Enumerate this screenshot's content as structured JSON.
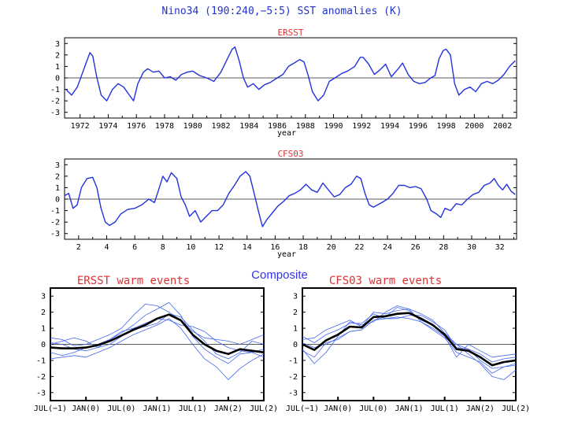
{
  "main_title": "Nino34 (190:240,−5:5) SST anomalies (K)",
  "composite_label": "Composite",
  "colors": {
    "title": "#2233cc",
    "subtitle": "#e03030",
    "series": "#2233dd",
    "composite": "#3333ee",
    "mean": "#000000",
    "thin": "#4466ee"
  },
  "chart_data": [
    {
      "id": "ersst",
      "type": "line",
      "title": "ERSST",
      "xlabel": "year",
      "ylabel": "",
      "xlim": [
        1970.9,
        2003.0
      ],
      "ylim": [
        -3.5,
        3.5
      ],
      "yticks": [
        -3,
        -2,
        -1,
        0,
        1,
        2,
        3
      ],
      "xtick_labels": [
        "1972",
        "1974",
        "1976",
        "1978",
        "1980",
        "1982",
        "1984",
        "1986",
        "1988",
        "1990",
        "1992",
        "1994",
        "1996",
        "1998",
        "2000",
        "2002"
      ],
      "x": [
        1971.0,
        1971.4,
        1971.8,
        1972.1,
        1972.4,
        1972.7,
        1972.9,
        1973.2,
        1973.5,
        1973.9,
        1974.3,
        1974.7,
        1975.1,
        1975.5,
        1975.8,
        1976.1,
        1976.5,
        1976.8,
        1977.2,
        1977.6,
        1978.0,
        1978.4,
        1978.8,
        1979.2,
        1979.6,
        1980.0,
        1980.5,
        1981.0,
        1981.5,
        1982.0,
        1982.4,
        1982.8,
        1983.0,
        1983.3,
        1983.6,
        1983.9,
        1984.3,
        1984.7,
        1985.1,
        1985.5,
        1986.0,
        1986.4,
        1986.8,
        1987.2,
        1987.6,
        1987.9,
        1988.2,
        1988.5,
        1988.9,
        1989.3,
        1989.7,
        1990.1,
        1990.6,
        1991.0,
        1991.5,
        1991.9,
        1992.1,
        1992.5,
        1992.9,
        1993.3,
        1993.7,
        1994.1,
        1994.6,
        1994.9,
        1995.3,
        1995.7,
        1996.1,
        1996.5,
        1996.9,
        1997.2,
        1997.5,
        1997.8,
        1998.0,
        1998.3,
        1998.6,
        1998.9,
        1999.3,
        1999.7,
        2000.1,
        2000.5,
        2000.9,
        2001.3,
        2001.7,
        2002.1,
        2002.5,
        2002.9
      ],
      "y": [
        -1.0,
        -1.5,
        -0.8,
        0.2,
        1.2,
        2.2,
        1.9,
        0.0,
        -1.5,
        -2.0,
        -1.0,
        -0.5,
        -0.8,
        -1.5,
        -2.0,
        -0.5,
        0.5,
        0.8,
        0.5,
        0.6,
        0.0,
        0.1,
        -0.2,
        0.3,
        0.5,
        0.6,
        0.2,
        0.0,
        -0.3,
        0.5,
        1.5,
        2.5,
        2.7,
        1.5,
        0.0,
        -0.8,
        -0.5,
        -1.0,
        -0.6,
        -0.4,
        0.0,
        0.3,
        1.0,
        1.3,
        1.6,
        1.4,
        0.2,
        -1.2,
        -2.0,
        -1.5,
        -0.3,
        0.0,
        0.4,
        0.6,
        1.0,
        1.8,
        1.8,
        1.2,
        0.3,
        0.7,
        1.2,
        0.1,
        0.8,
        1.3,
        0.3,
        -0.3,
        -0.5,
        -0.4,
        0.0,
        0.2,
        1.7,
        2.4,
        2.5,
        2.0,
        -0.5,
        -1.5,
        -1.0,
        -0.8,
        -1.2,
        -0.5,
        -0.3,
        -0.5,
        -0.2,
        0.3,
        1.0,
        1.5
      ]
    },
    {
      "id": "cfs03",
      "type": "line",
      "title": "CFS03",
      "xlabel": "year",
      "ylabel": "",
      "xlim": [
        1.0,
        33.2
      ],
      "ylim": [
        -3.5,
        3.5
      ],
      "yticks": [
        -3,
        -2,
        -1,
        0,
        1,
        2,
        3
      ],
      "xtick_labels": [
        "2",
        "4",
        "6",
        "8",
        "10",
        "12",
        "14",
        "16",
        "18",
        "20",
        "22",
        "24",
        "26",
        "28",
        "30",
        "32"
      ],
      "x": [
        1.0,
        1.3,
        1.6,
        1.9,
        2.2,
        2.6,
        3.0,
        3.3,
        3.6,
        3.9,
        4.2,
        4.6,
        5.0,
        5.5,
        6.0,
        6.5,
        7.0,
        7.4,
        7.7,
        8.0,
        8.3,
        8.6,
        9.0,
        9.3,
        9.6,
        9.9,
        10.3,
        10.7,
        11.1,
        11.5,
        11.9,
        12.3,
        12.7,
        13.1,
        13.5,
        13.9,
        14.2,
        14.5,
        14.8,
        15.1,
        15.4,
        15.8,
        16.2,
        16.6,
        17.0,
        17.4,
        17.8,
        18.2,
        18.6,
        19.0,
        19.4,
        19.8,
        20.2,
        20.6,
        21.0,
        21.4,
        21.8,
        22.1,
        22.4,
        22.7,
        23.0,
        23.3,
        23.6,
        24.0,
        24.4,
        24.8,
        25.2,
        25.6,
        26.0,
        26.4,
        26.8,
        27.1,
        27.5,
        27.8,
        28.1,
        28.5,
        28.9,
        29.3,
        29.7,
        30.1,
        30.5,
        30.9,
        31.3,
        31.6,
        31.9,
        32.2,
        32.5,
        32.8,
        33.1
      ],
      "y": [
        0.3,
        0.5,
        -0.8,
        -0.5,
        1.0,
        1.8,
        1.9,
        1.0,
        -0.8,
        -2.0,
        -2.3,
        -2.0,
        -1.3,
        -0.9,
        -0.8,
        -0.5,
        0.0,
        -0.3,
        0.8,
        2.0,
        1.5,
        2.3,
        1.8,
        0.2,
        -0.5,
        -1.5,
        -1.0,
        -2.0,
        -1.5,
        -1.0,
        -1.0,
        -0.5,
        0.5,
        1.2,
        2.0,
        2.4,
        2.0,
        0.5,
        -1.0,
        -2.4,
        -1.8,
        -1.2,
        -0.6,
        -0.2,
        0.3,
        0.5,
        0.8,
        1.3,
        0.8,
        0.6,
        1.4,
        0.8,
        0.2,
        0.4,
        1.0,
        1.3,
        2.0,
        1.8,
        0.5,
        -0.5,
        -0.7,
        -0.5,
        -0.3,
        0.0,
        0.5,
        1.2,
        1.2,
        1.0,
        1.1,
        0.9,
        0.0,
        -1.0,
        -1.3,
        -1.6,
        -0.8,
        -1.0,
        -0.4,
        -0.5,
        0.0,
        0.4,
        0.6,
        1.2,
        1.4,
        1.8,
        1.2,
        0.8,
        1.3,
        0.7,
        0.4
      ]
    },
    {
      "id": "ersst-composite",
      "type": "line",
      "title": "ERSST warm events",
      "xlabel": "",
      "ylabel": "",
      "xlim": [
        0,
        36
      ],
      "ylim": [
        -3.5,
        3.5
      ],
      "yticks": [
        -3,
        -2,
        -1,
        0,
        1,
        2,
        3
      ],
      "xtick_labels": [
        "JUL(−1)",
        "JAN(0)",
        "JUL(0)",
        "JAN(1)",
        "JUL(1)",
        "JAN(2)",
        "JUL(2)"
      ],
      "x": [
        0,
        2,
        4,
        6,
        8,
        10,
        12,
        14,
        16,
        18,
        20,
        22,
        24,
        26,
        28,
        30,
        32,
        34,
        36
      ],
      "series": [
        {
          "name": "mean",
          "values": [
            -0.2,
            -0.25,
            -0.25,
            -0.2,
            -0.05,
            0.2,
            0.55,
            0.9,
            1.2,
            1.6,
            1.85,
            1.5,
            0.6,
            0.0,
            -0.4,
            -0.6,
            -0.3,
            -0.4,
            -0.5
          ]
        },
        {
          "name": "event-1",
          "values": [
            0.4,
            0.3,
            -0.1,
            0.0,
            0.3,
            0.6,
            1.0,
            1.8,
            2.5,
            2.4,
            2.0,
            1.5,
            0.8,
            0.4,
            0.3,
            0.2,
            0.0,
            0.3,
            0.6
          ]
        },
        {
          "name": "event-2",
          "values": [
            -0.5,
            -0.7,
            -0.5,
            -0.2,
            0.0,
            0.3,
            0.7,
            1.2,
            1.8,
            2.2,
            2.6,
            1.8,
            0.5,
            -0.3,
            -0.8,
            -1.2,
            -0.6,
            -0.5,
            -0.8
          ]
        },
        {
          "name": "event-3",
          "values": [
            0.0,
            0.2,
            0.4,
            0.2,
            -0.2,
            0.0,
            0.5,
            1.0,
            1.3,
            1.6,
            1.5,
            1.2,
            1.1,
            0.8,
            0.2,
            -0.2,
            -0.4,
            -0.5,
            -0.3
          ]
        },
        {
          "name": "event-4",
          "values": [
            -0.9,
            -0.8,
            -0.7,
            -0.8,
            -0.5,
            -0.2,
            0.2,
            0.6,
            0.9,
            1.2,
            1.6,
            1.0,
            0.0,
            -0.9,
            -1.4,
            -2.2,
            -1.5,
            -1.0,
            -0.6
          ]
        },
        {
          "name": "event-5",
          "values": [
            0.1,
            0.0,
            -0.3,
            -0.4,
            -0.2,
            0.3,
            0.8,
            1.0,
            1.1,
            1.3,
            1.9,
            1.7,
            0.9,
            0.2,
            -0.6,
            -0.9,
            -0.5,
            0.2,
            0.0
          ]
        }
      ]
    },
    {
      "id": "cfs03-composite",
      "type": "line",
      "title": "CFS03 warm events",
      "xlabel": "",
      "ylabel": "",
      "xlim": [
        0,
        36
      ],
      "ylim": [
        -3.5,
        3.5
      ],
      "yticks": [
        -3,
        -2,
        -1,
        0,
        1,
        2,
        3
      ],
      "xtick_labels": [
        "JUL(−1)",
        "JAN(0)",
        "JUL(0)",
        "JAN(1)",
        "JUL(1)",
        "JAN(2)",
        "JUL(2)"
      ],
      "x": [
        0,
        2,
        4,
        6,
        8,
        10,
        12,
        14,
        16,
        18,
        20,
        22,
        24,
        26,
        28,
        30,
        32,
        34,
        36
      ],
      "series": [
        {
          "name": "mean",
          "values": [
            0.0,
            -0.35,
            0.25,
            0.6,
            1.1,
            1.05,
            1.7,
            1.75,
            1.9,
            1.95,
            1.6,
            1.2,
            0.6,
            -0.3,
            -0.4,
            -0.8,
            -1.3,
            -1.1,
            -1.0
          ]
        },
        {
          "name": "event-1",
          "values": [
            -0.3,
            -1.2,
            -0.5,
            0.5,
            1.4,
            1.2,
            1.4,
            2.0,
            2.4,
            2.2,
            1.9,
            1.5,
            0.7,
            0.0,
            -0.6,
            -1.2,
            -2.0,
            -2.2,
            -1.6
          ]
        },
        {
          "name": "event-2",
          "values": [
            0.3,
            0.4,
            0.9,
            1.2,
            1.5,
            1.1,
            2.0,
            1.9,
            2.1,
            2.2,
            1.4,
            1.0,
            0.5,
            -0.8,
            0.0,
            -0.4,
            -0.8,
            -0.7,
            -0.6
          ]
        },
        {
          "name": "event-3",
          "values": [
            0.1,
            -0.2,
            0.0,
            0.4,
            0.8,
            0.9,
            1.5,
            1.6,
            1.6,
            1.8,
            1.8,
            1.4,
            0.9,
            -0.2,
            -0.3,
            -1.0,
            -1.5,
            -1.4,
            -1.2
          ]
        },
        {
          "name": "event-4",
          "values": [
            0.5,
            0.1,
            0.6,
            0.9,
            1.3,
            1.3,
            1.9,
            1.6,
            1.7,
            1.6,
            1.4,
            0.9,
            0.4,
            -0.5,
            -0.8,
            -1.1,
            -1.8,
            -1.4,
            -1.3
          ]
        },
        {
          "name": "event-5",
          "values": [
            -0.4,
            -0.8,
            0.1,
            0.3,
            0.8,
            0.9,
            1.5,
            1.7,
            2.3,
            2.1,
            1.5,
            1.2,
            0.6,
            0.0,
            -0.3,
            -0.6,
            -1.1,
            -0.9,
            -0.8
          ]
        }
      ]
    }
  ]
}
